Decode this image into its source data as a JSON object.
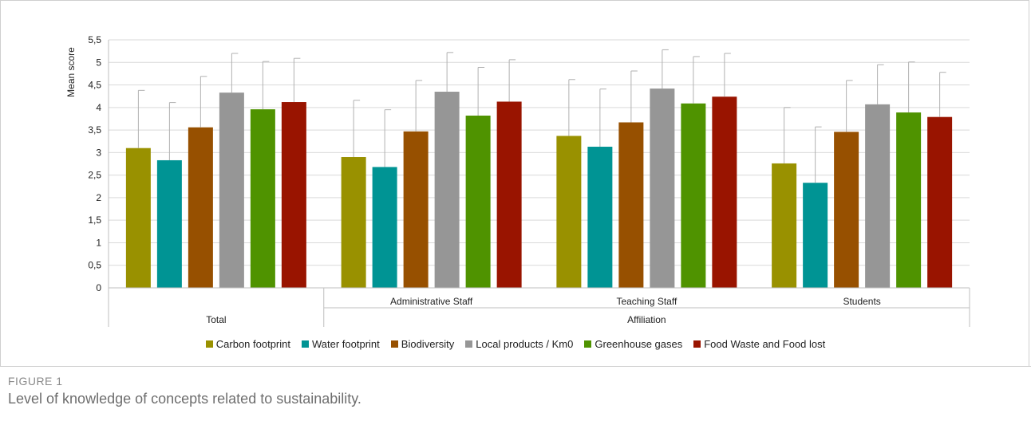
{
  "figure": {
    "label": "FIGURE 1",
    "caption": "Level of knowledge of concepts related to sustainability."
  },
  "chart_data": {
    "type": "bar",
    "ylabel": "Mean score",
    "ylim": [
      0,
      5.5
    ],
    "yticks": [
      "0",
      "0,5",
      "1",
      "1,5",
      "2",
      "2,5",
      "3",
      "3,5",
      "4",
      "4,5",
      "5",
      "5,5"
    ],
    "ytick_values": [
      0,
      0.5,
      1,
      1.5,
      2,
      2.5,
      3,
      3.5,
      4,
      4.5,
      5,
      5.5
    ],
    "grid": true,
    "legend_position": "bottom",
    "categories": [
      "Total",
      "Administrative Staff",
      "Teaching Staff",
      "Students"
    ],
    "outer_labels": {
      "left": "Total",
      "right": "Affiliation"
    },
    "series": [
      {
        "name": "Carbon footprint",
        "color": "#999100",
        "values": [
          3.1,
          2.9,
          3.37,
          2.76
        ],
        "errors": [
          1.28,
          1.26,
          1.25,
          1.24
        ]
      },
      {
        "name": "Water footprint",
        "color": "#009494",
        "values": [
          2.83,
          2.68,
          3.13,
          2.33
        ],
        "errors": [
          1.28,
          1.27,
          1.28,
          1.24
        ]
      },
      {
        "name": "Biodiversity",
        "color": "#975000",
        "values": [
          3.56,
          3.47,
          3.67,
          3.46
        ],
        "errors": [
          1.13,
          1.13,
          1.14,
          1.14
        ]
      },
      {
        "name": "Local products / Km0",
        "color": "#969696",
        "values": [
          4.33,
          4.35,
          4.42,
          4.07
        ],
        "errors": [
          0.87,
          0.87,
          0.86,
          0.88
        ]
      },
      {
        "name": "Greenhouse gases",
        "color": "#4f9300",
        "values": [
          3.96,
          3.82,
          4.09,
          3.89
        ],
        "errors": [
          1.06,
          1.07,
          1.04,
          1.12
        ]
      },
      {
        "name": "Food Waste and Food lost",
        "color": "#991400",
        "values": [
          4.12,
          4.13,
          4.24,
          3.79
        ],
        "errors": [
          0.97,
          0.93,
          0.96,
          0.99
        ]
      }
    ]
  }
}
